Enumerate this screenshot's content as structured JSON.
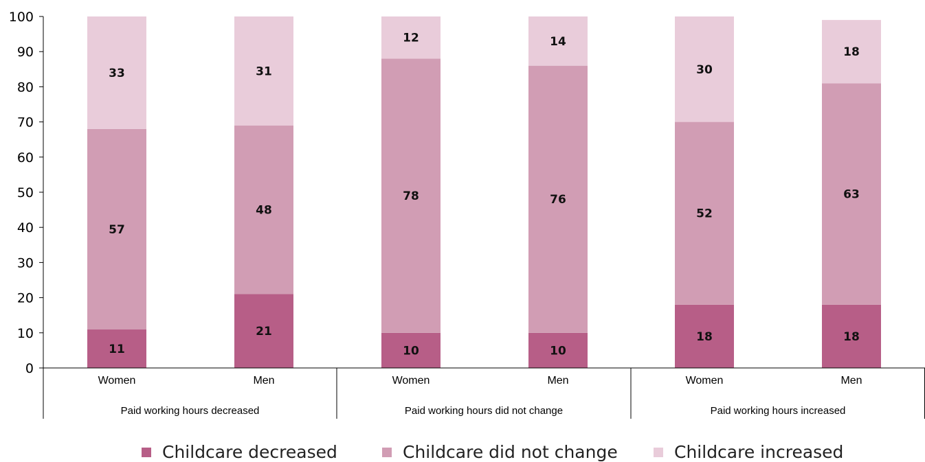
{
  "chart_data": {
    "type": "bar",
    "stacked": true,
    "title": "",
    "xlabel": "",
    "ylabel": "",
    "ylim": [
      0,
      100
    ],
    "yticks": [
      0,
      10,
      20,
      30,
      40,
      50,
      60,
      70,
      80,
      90,
      100
    ],
    "grid": false,
    "legend_position": "bottom",
    "groups": [
      "Paid working hours decreased",
      "Paid working hours did not change",
      "Paid working hours increased"
    ],
    "categories": [
      "Women",
      "Men",
      "Women",
      "Men",
      "Women",
      "Men"
    ],
    "series": [
      {
        "name": "Childcare decreased",
        "color": "#b75e87",
        "values": [
          11,
          21,
          10,
          10,
          18,
          18
        ]
      },
      {
        "name": "Childcare did not change",
        "color": "#d19db4",
        "values": [
          57,
          48,
          78,
          76,
          52,
          63
        ]
      },
      {
        "name": "Childcare increased",
        "color": "#e9ccda",
        "values": [
          33,
          31,
          12,
          14,
          30,
          18
        ]
      }
    ]
  }
}
